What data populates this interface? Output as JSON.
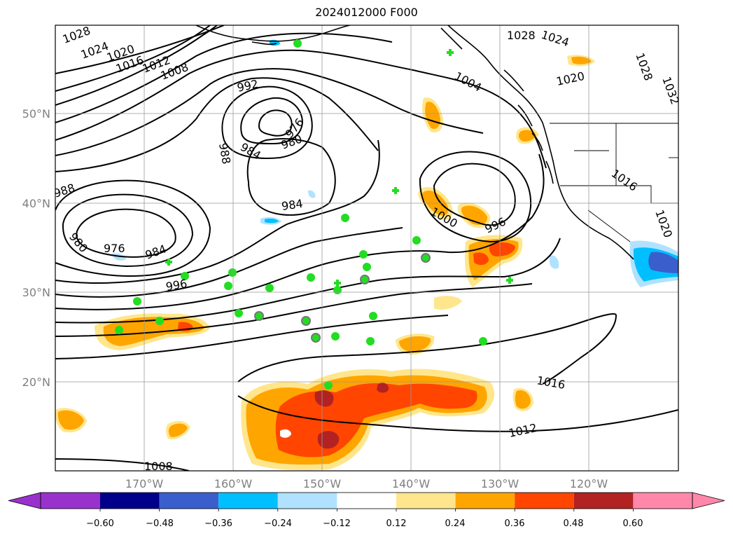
{
  "title": "2024012000 F000",
  "lat_labels": [
    "50°N",
    "40°N",
    "30°N",
    "20°N"
  ],
  "lon_labels": [
    "170°W",
    "160°W",
    "150°W",
    "140°W",
    "130°W",
    "120°W"
  ],
  "isobar_labels": [
    "1028",
    "1024",
    "1020",
    "1016",
    "1012",
    "1008",
    "992",
    "988",
    "984",
    "980",
    "976",
    "988",
    "980",
    "976",
    "984",
    "996",
    "984",
    "1000",
    "996",
    "1004",
    "1028",
    "1024",
    "1020",
    "1028",
    "1032",
    "1016",
    "1020",
    "1016",
    "1012",
    "1008"
  ],
  "colorbar": {
    "ticks": [
      "−0.60",
      "−0.48",
      "−0.36",
      "−0.24",
      "−0.12",
      "0.12",
      "0.24",
      "0.36",
      "0.48",
      "0.60"
    ],
    "colors": [
      "#9932cc",
      "#00008b",
      "#3a5fcd",
      "#00bfff",
      "#b0e2ff",
      "#ffffff",
      "#ffe68c",
      "#ffa500",
      "#ff4500",
      "#b22222",
      "#ff88aa"
    ]
  },
  "colors": {
    "positive_light": "#ffe68c",
    "positive_mid": "#ffa500",
    "positive_high": "#ff4500",
    "positive_max": "#b22222",
    "negative_light": "#b0e2ff",
    "negative_mid": "#00bfff",
    "negative_high": "#3a5fcd",
    "marker_green": "#22dd22",
    "marker_ring": "#777777"
  }
}
